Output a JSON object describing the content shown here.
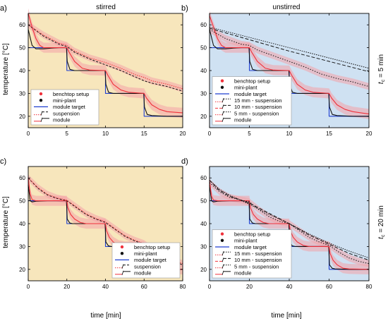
{
  "figure": {
    "ylabel": "temperature [°C]",
    "xlabel": "time [min]",
    "col_titles": [
      "stirred",
      "unstirred"
    ],
    "row_label_top": "t",
    "row_label_top_sub": "c",
    "row_label_top_value": " = 5 min",
    "row_label_bottom": "t",
    "row_label_bottom_sub": "c",
    "row_label_bottom_value": " = 20 min",
    "colors": {
      "stirred_bg": "#F7E6BC",
      "unstirred_bg": "#CFE1F2",
      "benchtop": "#F0303A",
      "miniplant": "#111111",
      "target": "#1E3FD0",
      "band": "#F4A3A8"
    }
  },
  "chart_data": [
    {
      "panel": "a)",
      "type": "line",
      "title": "stirred",
      "xlim": [
        0,
        20
      ],
      "ylim": [
        15,
        65
      ],
      "xticks": [
        0,
        5,
        10,
        15,
        20
      ],
      "yticks": [
        20,
        30,
        40,
        50,
        60
      ],
      "legend": {
        "placement": "bottom-left",
        "entries": [
          {
            "label": "benchtop setup",
            "style": "dot-red"
          },
          {
            "label": "mini-plant",
            "style": "dot-black"
          },
          {
            "label": "module target",
            "style": "line-blue"
          },
          {
            "label": "suspension",
            "style": "dot-dash-pair"
          },
          {
            "label": "module",
            "style": "solid-pair"
          }
        ]
      },
      "series": [
        {
          "role": "target",
          "x": [
            0,
            5,
            5,
            10,
            10,
            15,
            15,
            20
          ],
          "y": [
            50,
            50,
            40,
            40,
            30,
            30,
            20,
            20
          ]
        },
        {
          "role": "module-miniplant",
          "x": [
            0,
            0.5,
            1,
            2,
            3,
            4,
            4.95,
            5.05,
            5.4,
            6,
            8,
            9.95,
            10.05,
            10.4,
            11,
            13,
            14.95,
            15.05,
            15.4,
            16,
            18,
            20
          ],
          "y": [
            58,
            51,
            49.5,
            49.5,
            49.8,
            50,
            50,
            44,
            40.5,
            40,
            40,
            40,
            34,
            30.5,
            30,
            30,
            30,
            24,
            20.8,
            20.3,
            20,
            20
          ]
        },
        {
          "role": "module-benchtop",
          "x": [
            0,
            0.5,
            1,
            1.5,
            2,
            3,
            5,
            5.3,
            6,
            7,
            8,
            10,
            10.3,
            11,
            12,
            13,
            15,
            15.3,
            16,
            17,
            18,
            20
          ],
          "y": [
            65,
            59,
            54,
            51,
            50,
            50,
            50,
            48,
            44,
            41,
            40.2,
            40,
            38,
            34,
            31.5,
            30.5,
            30,
            28,
            25,
            23,
            22,
            21.5
          ]
        },
        {
          "role": "suspension-miniplant",
          "x": [
            0,
            2,
            4,
            5,
            6,
            8,
            10,
            12,
            14,
            15,
            16,
            18,
            20
          ],
          "y": [
            60,
            55,
            51.5,
            50.5,
            48,
            45,
            42.5,
            40,
            37,
            35.5,
            34.5,
            33,
            31
          ]
        },
        {
          "role": "suspension-benchtop",
          "x": [
            0,
            2,
            4,
            5,
            6,
            8,
            10,
            12,
            14,
            15,
            16,
            18,
            20
          ],
          "y": [
            60,
            55.5,
            52,
            51,
            48.5,
            45.5,
            43.5,
            41,
            38,
            37,
            35.5,
            34,
            32
          ]
        }
      ]
    },
    {
      "panel": "b)",
      "type": "line",
      "title": "unstirred",
      "xlim": [
        0,
        20
      ],
      "ylim": [
        15,
        65
      ],
      "xticks": [
        0,
        5,
        10,
        15,
        20
      ],
      "yticks": [
        20,
        30,
        40,
        50,
        60
      ],
      "legend": {
        "placement": "bottom-left",
        "entries": [
          {
            "label": "benchtop setup",
            "style": "dot-red"
          },
          {
            "label": "mini-plant",
            "style": "dot-black"
          },
          {
            "label": "module target",
            "style": "line-blue"
          },
          {
            "label": "15 mm - suspension",
            "style": "dot-pair"
          },
          {
            "label": "10 mm - suspension",
            "style": "dash-pair"
          },
          {
            "label": "5 mm - suspension",
            "style": "dot-pair"
          },
          {
            "label": "module",
            "style": "solid-pair"
          }
        ]
      },
      "series": [
        {
          "role": "target",
          "x": [
            0,
            5,
            5,
            10,
            10,
            15,
            15,
            20
          ],
          "y": [
            50,
            50,
            40,
            40,
            30,
            30,
            20,
            20
          ]
        },
        {
          "role": "module-miniplant",
          "x": [
            0,
            0.5,
            1,
            2,
            3,
            4,
            4.95,
            5.05,
            5.4,
            6,
            8,
            9.95,
            10.05,
            10.4,
            11,
            13,
            14.95,
            15.05,
            15.4,
            16,
            18,
            20
          ],
          "y": [
            58,
            51,
            49.5,
            49.5,
            49.8,
            50,
            50,
            44,
            40.5,
            40,
            40,
            40,
            34,
            30.5,
            30,
            30,
            30,
            24,
            20.8,
            20.3,
            20,
            20
          ]
        },
        {
          "role": "module-benchtop",
          "x": [
            0,
            0.5,
            1,
            1.5,
            2,
            3,
            5,
            5.3,
            6,
            7,
            8,
            10,
            10.3,
            11,
            12,
            13,
            15,
            15.3,
            16,
            17,
            18,
            20
          ],
          "y": [
            64,
            59,
            54,
            51,
            50,
            50,
            50,
            48,
            44,
            41,
            40.2,
            40,
            38,
            34,
            31.5,
            30.5,
            30,
            28,
            25,
            23,
            22,
            21
          ]
        },
        {
          "role": "15mm-suspension",
          "x": [
            0,
            5,
            10,
            15,
            20
          ],
          "y": [
            59,
            54.5,
            50,
            45.5,
            41
          ]
        },
        {
          "role": "10mm-suspension",
          "x": [
            0,
            5,
            10,
            15,
            20
          ],
          "y": [
            58.5,
            53.5,
            48.5,
            44,
            39.5
          ]
        },
        {
          "role": "5mm-suspension",
          "x": [
            0,
            2,
            4,
            5,
            6,
            8,
            10,
            12,
            14,
            15,
            16,
            18,
            20
          ],
          "y": [
            58,
            54,
            51.5,
            51,
            49,
            46.5,
            44,
            41.5,
            38.5,
            37.5,
            36.5,
            35,
            33
          ]
        }
      ]
    },
    {
      "panel": "c)",
      "type": "line",
      "xlim": [
        0,
        80
      ],
      "ylim": [
        15,
        65
      ],
      "xticks": [
        0,
        20,
        40,
        60,
        80
      ],
      "yticks": [
        20,
        30,
        40,
        50,
        60
      ],
      "legend": {
        "placement": "bottom-right",
        "entries": [
          {
            "label": "benchtop setup",
            "style": "dot-red"
          },
          {
            "label": "mini-plant",
            "style": "dot-black"
          },
          {
            "label": "module target",
            "style": "line-blue"
          },
          {
            "label": "suspension",
            "style": "dot-dash-pair"
          },
          {
            "label": "module",
            "style": "solid-pair"
          }
        ]
      },
      "series": [
        {
          "role": "target",
          "x": [
            0,
            20,
            20,
            40,
            40,
            60,
            60,
            80
          ],
          "y": [
            50,
            50,
            40,
            40,
            30,
            30,
            20,
            20
          ]
        },
        {
          "role": "module-miniplant",
          "x": [
            0,
            1,
            2,
            4,
            10,
            19.8,
            20.2,
            21.5,
            23,
            30,
            39.8,
            40.2,
            41.5,
            43,
            50,
            59.8,
            60.2,
            61.5,
            63,
            70,
            80
          ],
          "y": [
            57,
            50,
            49.5,
            49.8,
            50,
            50,
            42,
            40.3,
            40,
            40,
            40,
            32,
            30.3,
            30,
            30,
            30,
            22,
            20.5,
            20.2,
            20,
            20
          ]
        },
        {
          "role": "module-benchtop",
          "x": [
            0,
            1,
            2,
            4,
            10,
            20,
            20.5,
            22,
            24,
            27,
            30,
            40,
            40.5,
            42,
            44,
            47,
            50,
            60,
            60.5,
            62,
            64,
            67,
            70,
            80
          ],
          "y": [
            60,
            53,
            50.5,
            50,
            50,
            50,
            47,
            44,
            42,
            40.5,
            40,
            40,
            37,
            34,
            32,
            30.5,
            30,
            30,
            27,
            24,
            22,
            20.5,
            20.2,
            20
          ]
        },
        {
          "role": "suspension-miniplant",
          "x": [
            0,
            5,
            10,
            15,
            20,
            25,
            30,
            35,
            40,
            45,
            50,
            55,
            60,
            65,
            70,
            75,
            80
          ],
          "y": [
            60,
            55.5,
            52.5,
            51,
            50,
            47,
            44,
            42,
            40.5,
            37.5,
            34.5,
            32.5,
            31,
            28,
            25.5,
            23.5,
            22
          ]
        },
        {
          "role": "suspension-benchtop",
          "x": [
            0,
            5,
            10,
            15,
            20,
            25,
            30,
            35,
            40,
            45,
            50,
            55,
            60,
            65,
            70,
            75,
            80
          ],
          "y": [
            60,
            55.8,
            52.8,
            51.2,
            50.3,
            47.3,
            44.3,
            42.3,
            40.8,
            37.8,
            34.8,
            32.8,
            31.3,
            28.3,
            25.8,
            24,
            22.5
          ]
        }
      ]
    },
    {
      "panel": "d)",
      "type": "line",
      "xlim": [
        0,
        80
      ],
      "ylim": [
        15,
        65
      ],
      "xticks": [
        0,
        20,
        40,
        60,
        80
      ],
      "yticks": [
        20,
        30,
        40,
        50,
        60
      ],
      "legend": {
        "placement": "bottom-left",
        "entries": [
          {
            "label": "benchtop setup",
            "style": "dot-red"
          },
          {
            "label": "mini-plant",
            "style": "dot-black"
          },
          {
            "label": "module target",
            "style": "line-blue"
          },
          {
            "label": "15 mm - suspension",
            "style": "dot-pair"
          },
          {
            "label": "10 mm - suspension",
            "style": "dash-pair"
          },
          {
            "label": "5 mm - suspension",
            "style": "dot-pair"
          },
          {
            "label": "module",
            "style": "solid-pair"
          }
        ]
      },
      "series": [
        {
          "role": "target",
          "x": [
            0,
            20,
            20,
            40,
            40,
            60,
            60,
            80
          ],
          "y": [
            50,
            50,
            40,
            40,
            30,
            30,
            20,
            20
          ]
        },
        {
          "role": "module-miniplant",
          "x": [
            0,
            1,
            2,
            4,
            10,
            19.8,
            20.2,
            21.5,
            23,
            30,
            39.8,
            40.2,
            41.5,
            43,
            50,
            59.8,
            60.2,
            61.5,
            63,
            70,
            80
          ],
          "y": [
            57,
            50,
            49.5,
            49.8,
            50,
            50,
            42,
            40.3,
            40,
            40,
            40,
            32,
            30.3,
            30,
            30,
            30,
            22,
            20.5,
            20.2,
            20,
            20
          ]
        },
        {
          "role": "module-benchtop",
          "x": [
            0,
            1,
            2,
            4,
            10,
            20,
            20.5,
            22,
            24,
            27,
            30,
            40,
            40.5,
            42,
            44,
            47,
            50,
            60,
            60.5,
            62,
            64,
            67,
            70,
            80
          ],
          "y": [
            59,
            52,
            50.3,
            50,
            50,
            50,
            47,
            44,
            42,
            40.5,
            40,
            40,
            37,
            34,
            32,
            30.5,
            30,
            30,
            27,
            24,
            22,
            20.5,
            20.2,
            20
          ]
        },
        {
          "role": "15mm-suspension",
          "x": [
            0,
            5,
            10,
            20,
            30,
            40,
            50,
            60,
            70,
            80
          ],
          "y": [
            59,
            55,
            52.5,
            48.5,
            44,
            40,
            35.5,
            31.5,
            28,
            25
          ]
        },
        {
          "role": "10mm-suspension",
          "x": [
            0,
            5,
            10,
            20,
            30,
            40,
            50,
            60,
            70,
            80
          ],
          "y": [
            59,
            54.5,
            52,
            49,
            44.5,
            40,
            35,
            31,
            27,
            24
          ]
        },
        {
          "role": "5mm-suspension",
          "x": [
            0,
            5,
            10,
            15,
            20,
            25,
            30,
            35,
            40,
            45,
            50,
            55,
            60,
            65,
            70,
            75,
            80
          ],
          "y": [
            58,
            54,
            51.5,
            50.5,
            49.5,
            46,
            43,
            41,
            40,
            37,
            34,
            32,
            30.5,
            27.5,
            25,
            23.5,
            22.5
          ]
        }
      ]
    }
  ]
}
